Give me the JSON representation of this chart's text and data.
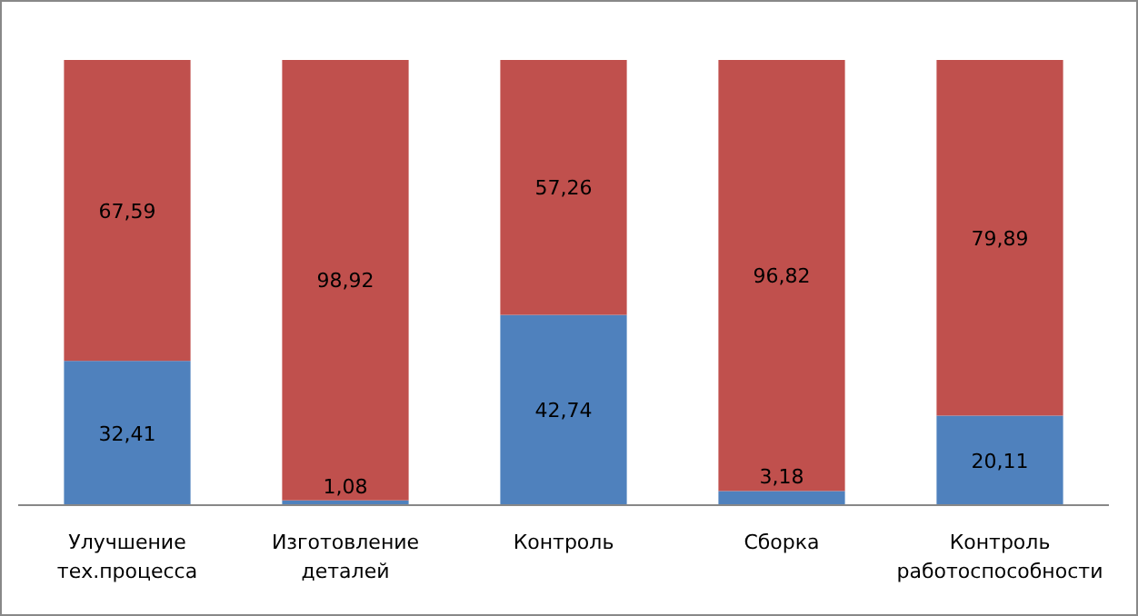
{
  "chart_data": {
    "type": "bar",
    "stacked": true,
    "categories": [
      "Улучшение тех.процесса",
      "Изготовление деталей",
      "Контроль",
      "Сборка",
      "Контроль работоспособности"
    ],
    "series": [
      {
        "color": "#4f81bd",
        "values": [
          32.41,
          1.08,
          42.74,
          3.18,
          20.11
        ],
        "value_labels": [
          "32,41",
          "1,08",
          "42,74",
          "3,18",
          "20,11"
        ]
      },
      {
        "color": "#c0504d",
        "values": [
          67.59,
          98.92,
          57.26,
          96.82,
          79.89
        ],
        "value_labels": [
          "67,59",
          "98,92",
          "57,26",
          "96,82",
          "79,89"
        ]
      }
    ]
  }
}
